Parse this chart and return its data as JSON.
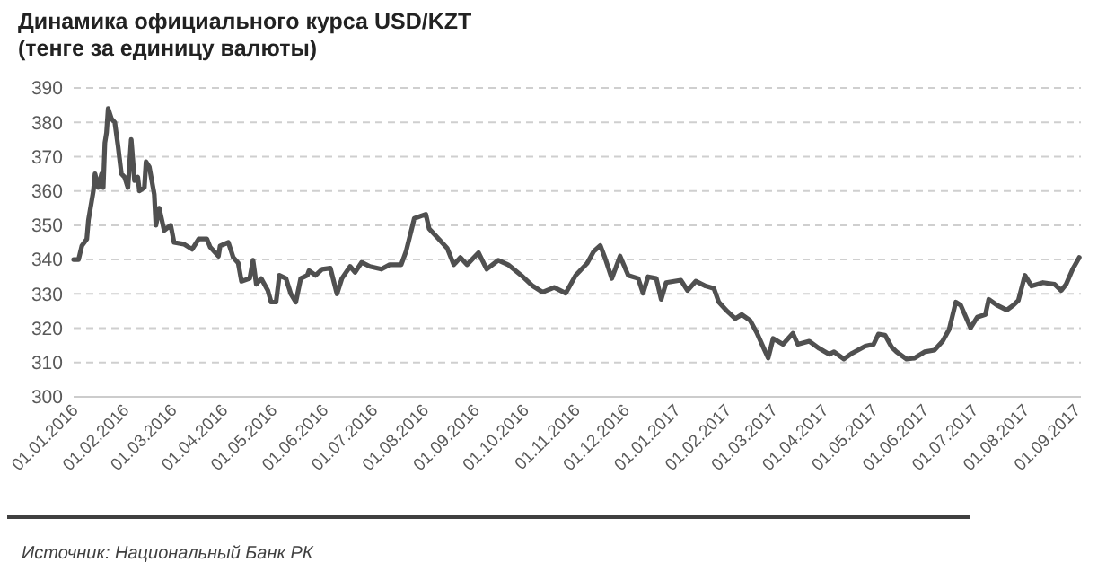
{
  "chart_data": {
    "type": "line",
    "title": "Динамика официального курса USD/KZT\n(тенге за единицу валюты)",
    "annotations": [
      "Источник: Национальный Банк РК"
    ],
    "grid": "y",
    "marker": "none",
    "line_style": "solid",
    "ylim": [
      300,
      390
    ],
    "yticks": [
      300,
      310,
      320,
      330,
      340,
      350,
      360,
      370,
      380,
      390
    ],
    "xlim": [
      "2016-01-01",
      "2017-09-04"
    ],
    "xticks": [
      {
        "value": "2016-01-01",
        "label": "01.01.2016"
      },
      {
        "value": "2016-02-01",
        "label": "01.02.2016"
      },
      {
        "value": "2016-03-01",
        "label": "01.03.2016"
      },
      {
        "value": "2016-04-01",
        "label": "01.04.2016"
      },
      {
        "value": "2016-05-01",
        "label": "01.05.2016"
      },
      {
        "value": "2016-06-01",
        "label": "01.06.2016"
      },
      {
        "value": "2016-07-01",
        "label": "01.07.2016"
      },
      {
        "value": "2016-08-01",
        "label": "01.08.2016"
      },
      {
        "value": "2016-09-01",
        "label": "01.09.2016"
      },
      {
        "value": "2016-10-01",
        "label": "01.10.2016"
      },
      {
        "value": "2016-11-01",
        "label": "01.11.2016"
      },
      {
        "value": "2016-12-01",
        "label": "01.12.2016"
      },
      {
        "value": "2017-01-01",
        "label": "01.01.2017"
      },
      {
        "value": "2017-02-01",
        "label": "01.02.2017"
      },
      {
        "value": "2017-03-01",
        "label": "01.03.2017"
      },
      {
        "value": "2017-04-01",
        "label": "01.04.2017"
      },
      {
        "value": "2017-05-01",
        "label": "01.05.2017"
      },
      {
        "value": "2017-06-01",
        "label": "01.06.2017"
      },
      {
        "value": "2017-07-01",
        "label": "01.07.2017"
      },
      {
        "value": "2017-08-01",
        "label": "01.08.2017"
      },
      {
        "value": "2017-09-01",
        "label": "01.09.2017"
      }
    ],
    "series": [
      {
        "color": "#505050",
        "x": [
          "2016-01-01",
          "2016-01-04",
          "2016-01-06",
          "2016-01-09",
          "2016-01-10",
          "2016-01-13",
          "2016-01-14",
          "2016-01-16",
          "2016-01-18",
          "2016-01-19",
          "2016-01-20",
          "2016-01-21",
          "2016-01-22",
          "2016-01-24",
          "2016-01-26",
          "2016-01-28",
          "2016-01-30",
          "2016-02-01",
          "2016-02-03",
          "2016-02-05",
          "2016-02-07",
          "2016-02-09",
          "2016-02-10",
          "2016-02-13",
          "2016-02-14",
          "2016-02-16",
          "2016-02-19",
          "2016-02-20",
          "2016-02-22",
          "2016-02-25",
          "2016-02-29",
          "2016-03-02",
          "2016-03-08",
          "2016-03-13",
          "2016-03-17",
          "2016-03-22",
          "2016-03-24",
          "2016-03-29",
          "2016-03-30",
          "2016-04-04",
          "2016-04-07",
          "2016-04-10",
          "2016-04-12",
          "2016-04-17",
          "2016-04-19",
          "2016-04-21",
          "2016-04-24",
          "2016-04-28",
          "2016-04-30",
          "2016-05-03",
          "2016-05-05",
          "2016-05-09",
          "2016-05-12",
          "2016-05-15",
          "2016-05-18",
          "2016-05-22",
          "2016-05-23",
          "2016-05-27",
          "2016-05-31",
          "2016-06-05",
          "2016-06-09",
          "2016-06-12",
          "2016-06-17",
          "2016-06-20",
          "2016-06-24",
          "2016-06-29",
          "2016-07-06",
          "2016-07-11",
          "2016-07-18",
          "2016-07-21",
          "2016-07-26",
          "2016-08-02",
          "2016-08-04",
          "2016-08-10",
          "2016-08-15",
          "2016-08-19",
          "2016-08-23",
          "2016-08-27",
          "2016-09-03",
          "2016-09-08",
          "2016-09-15",
          "2016-09-21",
          "2016-09-29",
          "2016-10-06",
          "2016-10-12",
          "2016-10-19",
          "2016-10-26",
          "2016-11-01",
          "2016-11-08",
          "2016-11-12",
          "2016-11-16",
          "2016-11-19",
          "2016-11-23",
          "2016-11-28",
          "2016-12-03",
          "2016-12-09",
          "2016-12-12",
          "2016-12-15",
          "2016-12-20",
          "2016-12-23",
          "2016-12-26",
          "2017-01-04",
          "2017-01-08",
          "2017-01-13",
          "2017-01-19",
          "2017-01-24",
          "2017-01-27",
          "2017-02-01",
          "2017-02-06",
          "2017-02-10",
          "2017-02-15",
          "2017-02-19",
          "2017-02-23",
          "2017-02-26",
          "2017-03-01",
          "2017-03-07",
          "2017-03-13",
          "2017-03-16",
          "2017-03-23",
          "2017-03-29",
          "2017-04-04",
          "2017-04-07",
          "2017-04-13",
          "2017-04-18",
          "2017-04-26",
          "2017-05-01",
          "2017-05-04",
          "2017-05-08",
          "2017-05-12",
          "2017-05-15",
          "2017-05-21",
          "2017-05-26",
          "2017-06-01",
          "2017-06-07",
          "2017-06-12",
          "2017-06-16",
          "2017-06-20",
          "2017-06-23",
          "2017-06-29",
          "2017-07-03",
          "2017-07-08",
          "2017-07-10",
          "2017-07-15",
          "2017-07-21",
          "2017-07-25",
          "2017-07-28",
          "2017-08-01",
          "2017-08-05",
          "2017-08-12",
          "2017-08-19",
          "2017-08-23",
          "2017-08-26",
          "2017-08-30",
          "2017-09-03"
        ],
        "values": [
          340,
          340,
          344,
          346,
          351.5,
          360,
          365,
          361,
          365,
          361,
          374,
          377,
          384,
          381,
          380,
          373,
          365,
          364,
          361,
          375,
          363,
          364,
          360,
          361,
          368.5,
          367,
          359,
          350,
          355,
          348.5,
          350,
          345,
          344.5,
          343,
          346,
          346,
          343.6,
          341,
          344,
          345,
          340.6,
          339,
          333.7,
          334.5,
          339.8,
          332.8,
          334.5,
          331,
          327.6,
          327.6,
          335.4,
          334.5,
          330,
          327.6,
          334.5,
          335.4,
          336.8,
          335.4,
          337.2,
          337.5,
          330,
          334.5,
          338,
          336.3,
          339.2,
          338,
          337.2,
          338.5,
          338.5,
          342.4,
          352,
          353.2,
          349,
          345.9,
          343.3,
          338.5,
          340.6,
          338.5,
          342,
          337.2,
          339.8,
          338.5,
          335.4,
          332.3,
          330.5,
          331.9,
          330.2,
          335.4,
          338.9,
          342.4,
          344.1,
          340.3,
          334.5,
          341,
          335.4,
          334.5,
          330.2,
          335,
          334.5,
          328.4,
          333.3,
          334,
          331,
          333.7,
          332.3,
          331.6,
          327.6,
          325,
          322.8,
          324,
          322.3,
          318.8,
          314.5,
          311.3,
          317,
          315.3,
          318.5,
          315.3,
          316.2,
          314.1,
          312.4,
          313.1,
          311,
          312.7,
          314.8,
          315.3,
          318.3,
          318,
          314.5,
          313.1,
          311,
          311.3,
          313.1,
          313.6,
          316.2,
          319.7,
          327.6,
          326.7,
          320.1,
          323.2,
          324,
          328.4,
          326.7,
          325.3,
          326.7,
          328.1,
          335.4,
          332.3,
          333.3,
          332.8,
          331,
          332.8,
          337.2,
          340.6
        ]
      }
    ]
  }
}
